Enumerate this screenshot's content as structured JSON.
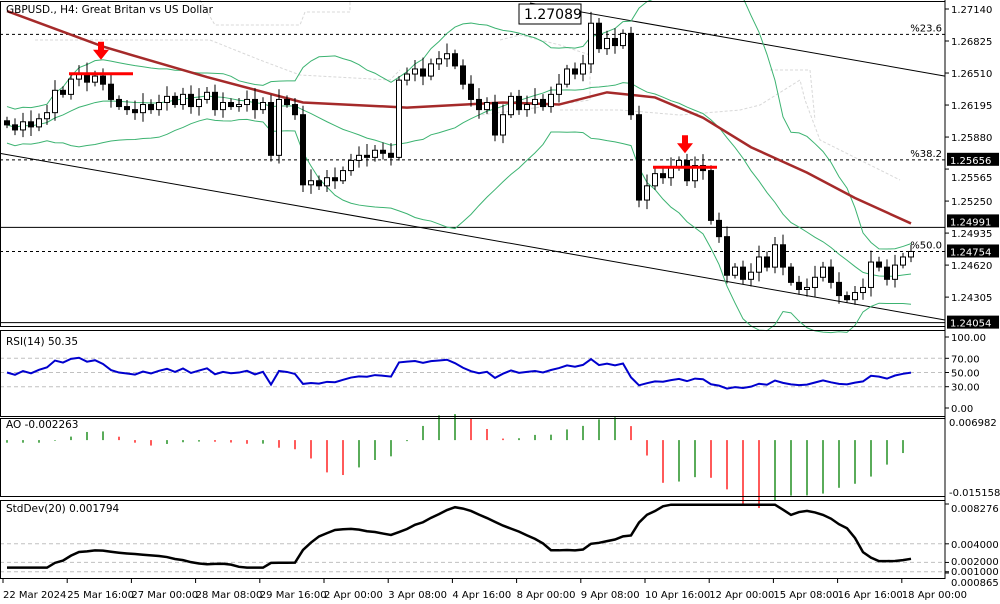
{
  "header": {
    "symbol_title": "GBPUSD., H4:  Great Britan vs US Dollar"
  },
  "colors": {
    "bull_fill": "#ffffff",
    "bear_fill": "#000000",
    "ma": "#a52a2a",
    "bands": "#3cb371",
    "rsi": "#0000cd",
    "ao_up": "#008000",
    "ao_down": "#ff0000",
    "stddev": "#000000",
    "arrow": "#ff0000"
  },
  "chart_data": [
    {
      "type": "candlestick",
      "title": "GBPUSD., H4:  Great Britan vs US Dollar",
      "timeframe": "H4",
      "ylim": [
        1.24054,
        1.2714
      ],
      "price_ticks": [
        "1.27140",
        "1.26825",
        "1.26510",
        "1.26195",
        "1.25880",
        "1.25565",
        "1.25250",
        "1.24935",
        "1.24620",
        "1.24305"
      ],
      "highlight_labels": [
        {
          "value": "1.25656",
          "style": "black"
        },
        {
          "value": "1.24991",
          "style": "black"
        },
        {
          "value": "1.24754",
          "style": "black"
        },
        {
          "value": "1.24054",
          "style": "black"
        }
      ],
      "high_marker": "1.27089",
      "fib_levels": [
        {
          "label": "%23.6",
          "price": 1.2689
        },
        {
          "label": "%38.2",
          "price": 1.25656
        },
        {
          "label": "%50.0",
          "price": 1.24754
        }
      ],
      "horizontal_lines": [
        1.24991,
        1.24054
      ],
      "trendlines": [
        {
          "from": [
            "9 Apr 00:00",
            1.2718
          ],
          "to": [
            "18 Apr 12:00",
            1.2648
          ]
        },
        {
          "from": [
            "22 Mar 2024",
            1.2572
          ],
          "to": [
            "18 Apr 12:00",
            1.2408
          ]
        }
      ],
      "sell_signals": [
        {
          "bar": 12,
          "price": 1.2668
        },
        {
          "bar": 85,
          "price": 1.2576
        }
      ],
      "closes": [
        1.26,
        1.2595,
        1.2603,
        1.2598,
        1.2606,
        1.2612,
        1.2634,
        1.263,
        1.2645,
        1.265,
        1.2642,
        1.2648,
        1.264,
        1.2625,
        1.2618,
        1.2615,
        1.2612,
        1.262,
        1.2615,
        1.2622,
        1.2628,
        1.262,
        1.263,
        1.2618,
        1.2625,
        1.2632,
        1.2615,
        1.2622,
        1.2618,
        1.262,
        1.2625,
        1.2615,
        1.2622,
        1.257,
        1.2625,
        1.262,
        1.261,
        1.2541,
        1.2545,
        1.254,
        1.2548,
        1.2545,
        1.2555,
        1.2565,
        1.257,
        1.2568,
        1.2575,
        1.2572,
        1.2568,
        1.2644,
        1.265,
        1.2655,
        1.2648,
        1.266,
        1.2665,
        1.267,
        1.2658,
        1.264,
        1.2625,
        1.2615,
        1.2622,
        1.259,
        1.261,
        1.2628,
        1.2615,
        1.262,
        1.2625,
        1.2618,
        1.263,
        1.264,
        1.2655,
        1.265,
        1.266,
        1.27,
        1.2675,
        1.2685,
        1.2678,
        1.269,
        1.261,
        1.2526,
        1.254,
        1.2552,
        1.2548,
        1.2558,
        1.2565,
        1.2545,
        1.256,
        1.2555,
        1.2506,
        1.249,
        1.2452,
        1.246,
        1.2448,
        1.2455,
        1.247,
        1.246,
        1.2482,
        1.246,
        1.2445,
        1.2438,
        1.244,
        1.245,
        1.246,
        1.2445,
        1.2432,
        1.2428,
        1.2435,
        1.244,
        1.2465,
        1.246,
        1.2448,
        1.2462,
        1.247,
        1.24754
      ],
      "ma_line": [
        [
          0,
          1.2712
        ],
        [
          12,
          1.2677
        ],
        [
          25,
          1.2647
        ],
        [
          37,
          1.2622
        ],
        [
          50,
          1.2617
        ],
        [
          62,
          1.2622
        ],
        [
          69,
          1.262
        ],
        [
          75,
          1.2632
        ],
        [
          81,
          1.2627
        ],
        [
          87,
          1.2607
        ],
        [
          93,
          1.2578
        ],
        [
          100,
          1.2553
        ],
        [
          106,
          1.2528
        ],
        [
          113,
          1.2503
        ]
      ]
    },
    {
      "type": "line",
      "name": "RSI(14)",
      "label": "RSI(14) 50.35",
      "ylim": [
        0,
        100
      ],
      "ticks": [
        "100.00",
        "70.00",
        "50.00",
        "30.00",
        "0.00"
      ],
      "levels": [
        70,
        50,
        30
      ]
    },
    {
      "type": "bar",
      "name": "AO",
      "label": "AO -0.002263",
      "ylim": [
        -0.015158,
        0.006982
      ],
      "ticks": [
        "0.006982",
        "-0.015158"
      ]
    },
    {
      "type": "line",
      "name": "StdDev(20)",
      "label": "StdDev(20) 0.001794",
      "ylim": [
        0.000865,
        0.008276
      ],
      "ticks": [
        "0.008276",
        "0.004000",
        "0.002000",
        "0.001000",
        "0.000865"
      ],
      "levels": [
        0.004,
        0.002,
        0.001
      ]
    }
  ],
  "time_axis": [
    "22 Mar 2024",
    "25 Mar 16:00",
    "27 Mar 00:00",
    "28 Mar 08:00",
    "29 Mar 16:00",
    "2 Apr 00:00",
    "3 Apr 08:00",
    "4 Apr 16:00",
    "8 Apr 00:00",
    "9 Apr 08:00",
    "10 Apr 16:00",
    "12 Apr 00:00",
    "15 Apr 08:00",
    "16 Apr 16:00",
    "18 Apr 00:00"
  ]
}
